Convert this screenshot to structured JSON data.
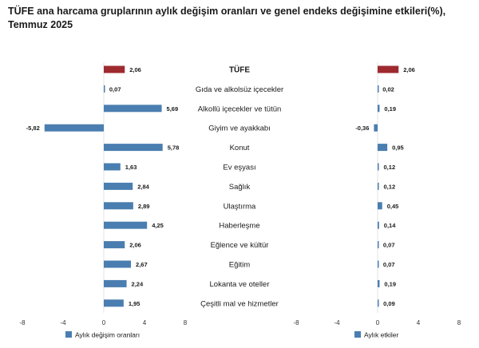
{
  "chart_data": {
    "type": "bar",
    "orientation": "horizontal",
    "title": "TÜFE ana harcama gruplarının aylık değişim oranları ve genel endeks değişimine etkileri(%), Temmuz 2025",
    "categories": [
      "TÜFE",
      "Gıda ve alkolsüz içecekler",
      "Alkollü içecekler ve tütün",
      "Giyim ve ayakkabı",
      "Konut",
      "Ev eşyası",
      "Sağlık",
      "Ulaştırma",
      "Haberleşme",
      "Eğlence ve kültür",
      "Eğitim",
      "Lokanta ve oteller",
      "Çeşitli mal ve hizmetler"
    ],
    "series": [
      {
        "name": "Aylık değişim oranları",
        "values": [
          2.06,
          0.07,
          5.69,
          -5.82,
          5.78,
          1.63,
          2.84,
          2.89,
          4.25,
          2.06,
          2.67,
          2.24,
          1.95
        ],
        "labels": [
          "2,06",
          "0,07",
          "5,69",
          "-5,82",
          "5,78",
          "1,63",
          "2,84",
          "2,89",
          "4,25",
          "2,06",
          "2,67",
          "2,24",
          "1,95"
        ]
      },
      {
        "name": "Aylık etkiler",
        "values": [
          2.06,
          0.02,
          0.19,
          -0.36,
          0.95,
          0.12,
          0.12,
          0.45,
          0.14,
          0.07,
          0.07,
          0.19,
          0.09
        ],
        "labels": [
          "2,06",
          "0,02",
          "0,19",
          "-0,36",
          "0,95",
          "0,12",
          "0,12",
          "0,45",
          "0,14",
          "0,07",
          "0,07",
          "0,19",
          "0,09"
        ]
      }
    ],
    "xlim": [
      -8,
      8
    ],
    "xticks": [
      "-8",
      "-4",
      "0",
      "4",
      "8"
    ],
    "colors": {
      "bar": "#4a7eb0",
      "highlight": "#9e2a2f"
    },
    "grid": false,
    "legend": "bottom"
  }
}
